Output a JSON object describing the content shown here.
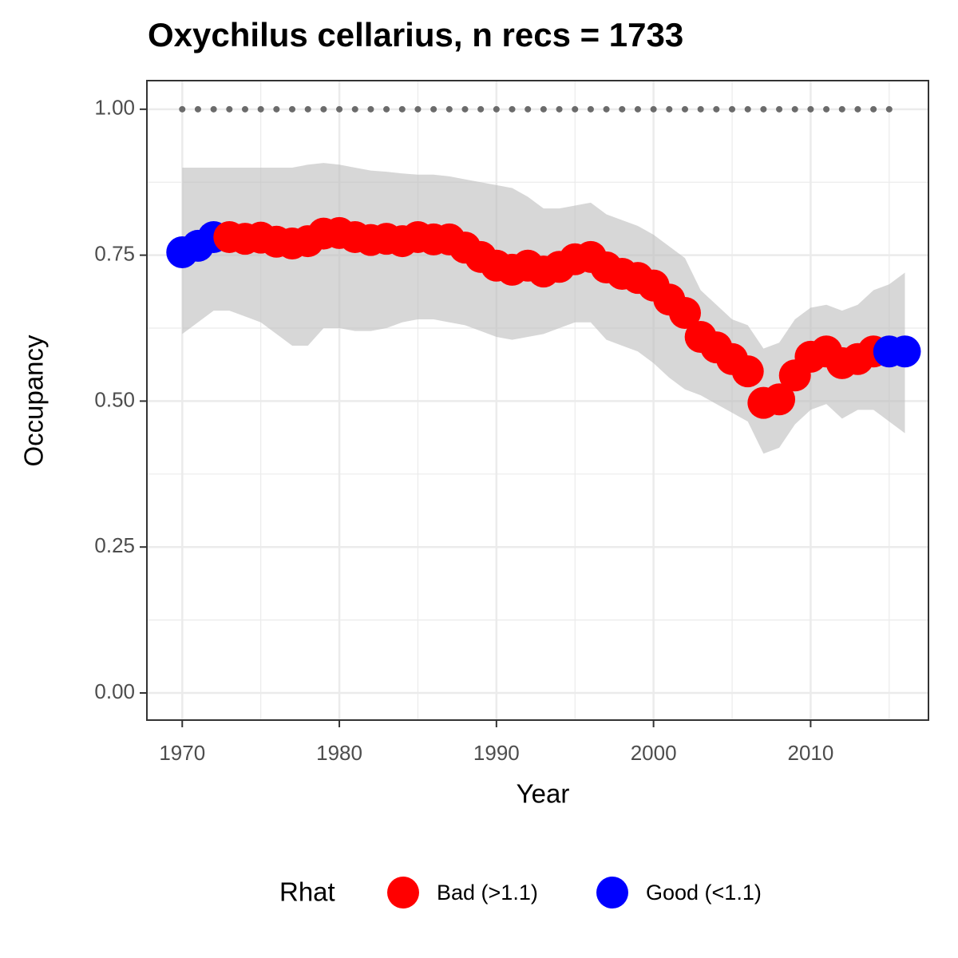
{
  "chart_data": {
    "type": "line",
    "title": "Oxychilus cellarius, n recs = 1733",
    "xlabel": "Year",
    "ylabel": "Occupancy",
    "x": [
      1970,
      1971,
      1972,
      1973,
      1974,
      1975,
      1976,
      1977,
      1978,
      1979,
      1980,
      1981,
      1982,
      1983,
      1984,
      1985,
      1986,
      1987,
      1988,
      1989,
      1990,
      1991,
      1992,
      1993,
      1994,
      1995,
      1996,
      1997,
      1998,
      1999,
      2000,
      2001,
      2002,
      2003,
      2004,
      2005,
      2006,
      2007,
      2008,
      2009,
      2010,
      2011,
      2012,
      2013,
      2014,
      2015,
      2016
    ],
    "series": [
      {
        "values": [
          0.755,
          0.766,
          0.781,
          0.781,
          0.778,
          0.78,
          0.773,
          0.77,
          0.774,
          0.787,
          0.788,
          0.781,
          0.776,
          0.778,
          0.774,
          0.781,
          0.777,
          0.777,
          0.763,
          0.747,
          0.732,
          0.725,
          0.732,
          0.722,
          0.73,
          0.743,
          0.747,
          0.729,
          0.718,
          0.711,
          0.698,
          0.674,
          0.651,
          0.61,
          0.592,
          0.572,
          0.551,
          0.497,
          0.503,
          0.544,
          0.576,
          0.585,
          0.565,
          0.572,
          0.585,
          0.585,
          0.585
        ],
        "upper": [
          0.9,
          0.9,
          0.9,
          0.9,
          0.9,
          0.9,
          0.9,
          0.9,
          0.905,
          0.908,
          0.905,
          0.9,
          0.895,
          0.893,
          0.89,
          0.888,
          0.888,
          0.885,
          0.88,
          0.875,
          0.87,
          0.865,
          0.85,
          0.83,
          0.83,
          0.835,
          0.84,
          0.82,
          0.81,
          0.8,
          0.785,
          0.765,
          0.745,
          0.69,
          0.665,
          0.64,
          0.63,
          0.59,
          0.6,
          0.64,
          0.66,
          0.665,
          0.655,
          0.665,
          0.69,
          0.7,
          0.72
        ],
        "lower": [
          0.615,
          0.635,
          0.655,
          0.655,
          0.645,
          0.635,
          0.615,
          0.595,
          0.595,
          0.625,
          0.625,
          0.62,
          0.62,
          0.625,
          0.635,
          0.64,
          0.64,
          0.635,
          0.63,
          0.62,
          0.61,
          0.605,
          0.61,
          0.615,
          0.625,
          0.635,
          0.635,
          0.605,
          0.595,
          0.585,
          0.565,
          0.54,
          0.52,
          0.51,
          0.495,
          0.48,
          0.465,
          0.41,
          0.42,
          0.46,
          0.485,
          0.495,
          0.47,
          0.485,
          0.485,
          0.465,
          0.445
        ],
        "colors": [
          "#0000ff",
          "#0000ff",
          "#0000ff",
          "#ff0000",
          "#ff0000",
          "#ff0000",
          "#ff0000",
          "#ff0000",
          "#ff0000",
          "#ff0000",
          "#ff0000",
          "#ff0000",
          "#ff0000",
          "#ff0000",
          "#ff0000",
          "#ff0000",
          "#ff0000",
          "#ff0000",
          "#ff0000",
          "#ff0000",
          "#ff0000",
          "#ff0000",
          "#ff0000",
          "#ff0000",
          "#ff0000",
          "#ff0000",
          "#ff0000",
          "#ff0000",
          "#ff0000",
          "#ff0000",
          "#ff0000",
          "#ff0000",
          "#ff0000",
          "#ff0000",
          "#ff0000",
          "#ff0000",
          "#ff0000",
          "#ff0000",
          "#ff0000",
          "#ff0000",
          "#ff0000",
          "#ff0000",
          "#ff0000",
          "#ff0000",
          "#ff0000",
          "#0000ff",
          "#0000ff"
        ],
        "band_color": "#bdbdbd"
      }
    ],
    "reference": {
      "x": [
        1970,
        1971,
        1972,
        1973,
        1974,
        1975,
        1976,
        1977,
        1978,
        1979,
        1980,
        1981,
        1982,
        1983,
        1984,
        1985,
        1986,
        1987,
        1988,
        1989,
        1990,
        1991,
        1992,
        1993,
        1994,
        1995,
        1996,
        1997,
        1998,
        1999,
        2000,
        2001,
        2002,
        2003,
        2004,
        2005,
        2006,
        2007,
        2008,
        2009,
        2010,
        2011,
        2012,
        2013,
        2014,
        2015
      ],
      "values": [
        1,
        1,
        1,
        1,
        1,
        1,
        1,
        1,
        1,
        1,
        1,
        1,
        1,
        1,
        1,
        1,
        1,
        1,
        1,
        1,
        1,
        1,
        1,
        1,
        1,
        1,
        1,
        1,
        1,
        1,
        1,
        1,
        1,
        1,
        1,
        1,
        1,
        1,
        1,
        1,
        1,
        1,
        1,
        1,
        1,
        1
      ],
      "color": "#6b6b6b"
    },
    "legend": {
      "title": "Rhat",
      "entries": [
        {
          "label": "Bad (>1.1)",
          "color": "#ff0000"
        },
        {
          "label": "Good (<1.1)",
          "color": "#0000ff"
        }
      ]
    },
    "xlim": [
      1967.75,
      2017.5
    ],
    "ylim": [
      -0.0465,
      1.049
    ],
    "xticks": [
      1970,
      1980,
      1990,
      2000,
      2010
    ],
    "yticks": [
      {
        "value": 0,
        "label": "0.00"
      },
      {
        "value": 0.25,
        "label": "0.25"
      },
      {
        "value": 0.5,
        "label": "0.50"
      },
      {
        "value": 0.75,
        "label": "0.75"
      },
      {
        "value": 1,
        "label": "1.00"
      }
    ],
    "xminor": [
      1975,
      1985,
      1995,
      2005,
      2015
    ],
    "yminor": [
      0.125,
      0.375,
      0.625,
      0.875
    ],
    "grid": true
  }
}
